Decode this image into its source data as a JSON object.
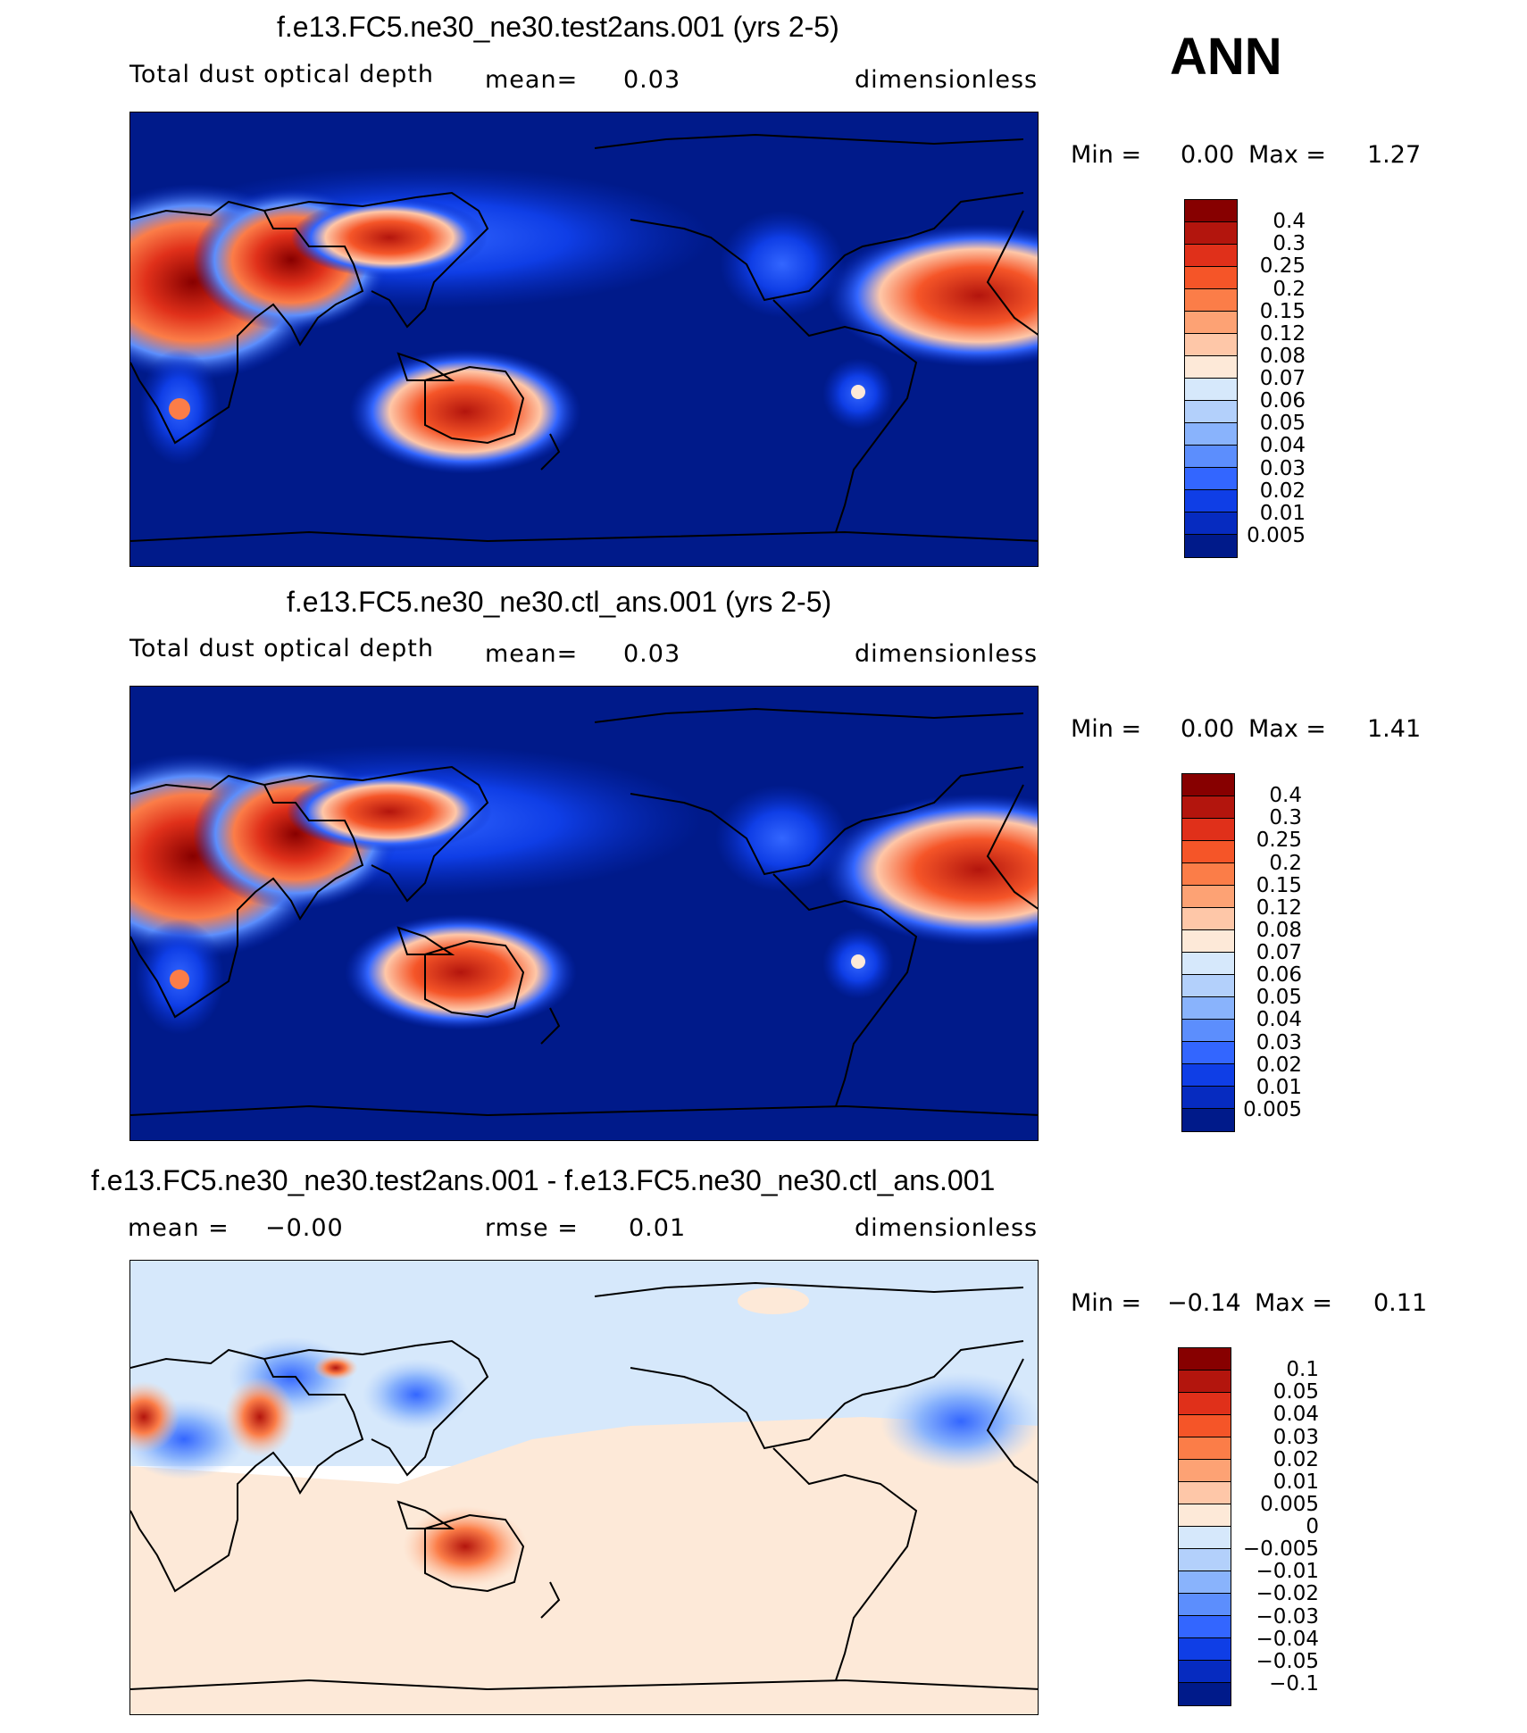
{
  "season": "ANN",
  "panels": [
    {
      "id": "test",
      "title": "f.e13.FC5.ne30_ne30.test2ans.001 (yrs 2-5)",
      "variable": "Total dust optical depth",
      "stat1": "mean=",
      "stat1_value": "0.03",
      "units": "dimensionless",
      "min_label": "Min =",
      "min_value": "0.00",
      "max_label": "Max =",
      "max_value": "1.27",
      "levels": [
        "0.4",
        "0.3",
        "0.25",
        "0.2",
        "0.15",
        "0.12",
        "0.08",
        "0.07",
        "0.06",
        "0.05",
        "0.04",
        "0.03",
        "0.02",
        "0.01",
        "0.005"
      ],
      "colors": [
        "#870000",
        "#b3150d",
        "#e0301a",
        "#f55528",
        "#fb7d48",
        "#fda274",
        "#fec7a8",
        "#fde9d8",
        "#d6e8fb",
        "#b3d0fb",
        "#89b3fc",
        "#5c8efd",
        "#3366ff",
        "#0f3ee6",
        "#062bc0",
        "#001a8a"
      ]
    },
    {
      "id": "ctl",
      "title": "f.e13.FC5.ne30_ne30.ctl_ans.001 (yrs 2-5)",
      "variable": "Total dust optical depth",
      "stat1": "mean=",
      "stat1_value": "0.03",
      "units": "dimensionless",
      "min_label": "Min =",
      "min_value": "0.00",
      "max_label": "Max =",
      "max_value": "1.41",
      "levels": [
        "0.4",
        "0.3",
        "0.25",
        "0.2",
        "0.15",
        "0.12",
        "0.08",
        "0.07",
        "0.06",
        "0.05",
        "0.04",
        "0.03",
        "0.02",
        "0.01",
        "0.005"
      ],
      "colors": [
        "#870000",
        "#b3150d",
        "#e0301a",
        "#f55528",
        "#fb7d48",
        "#fda274",
        "#fec7a8",
        "#fde9d8",
        "#d6e8fb",
        "#b3d0fb",
        "#89b3fc",
        "#5c8efd",
        "#3366ff",
        "#0f3ee6",
        "#062bc0",
        "#001a8a"
      ]
    },
    {
      "id": "diff",
      "title": "f.e13.FC5.ne30_ne30.test2ans.001 - f.e13.FC5.ne30_ne30.ctl_ans.001",
      "stat1": "mean =",
      "stat1_value": "−0.00",
      "stat2": "rmse =",
      "stat2_value": "0.01",
      "units": "dimensionless",
      "min_label": "Min =",
      "min_value": "−0.14",
      "max_label": "Max =",
      "max_value": "0.11",
      "levels": [
        "0.1",
        "0.05",
        "0.04",
        "0.03",
        "0.02",
        "0.01",
        "0.005",
        "0",
        "−0.005",
        "−0.01",
        "−0.02",
        "−0.03",
        "−0.04",
        "−0.05",
        "−0.1"
      ],
      "colors": [
        "#870000",
        "#b3150d",
        "#e0301a",
        "#f55528",
        "#fb7d48",
        "#fda274",
        "#fec7a8",
        "#fde9d8",
        "#d6e8fb",
        "#b3d0fb",
        "#89b3fc",
        "#5c8efd",
        "#3366ff",
        "#0f3ee6",
        "#062bc0",
        "#001a8a"
      ]
    }
  ],
  "map_background": {
    "test": "#001a8a",
    "ctl": "#001a8a",
    "diff_north": "#d6e8fb",
    "diff_south": "#fde9d8"
  }
}
